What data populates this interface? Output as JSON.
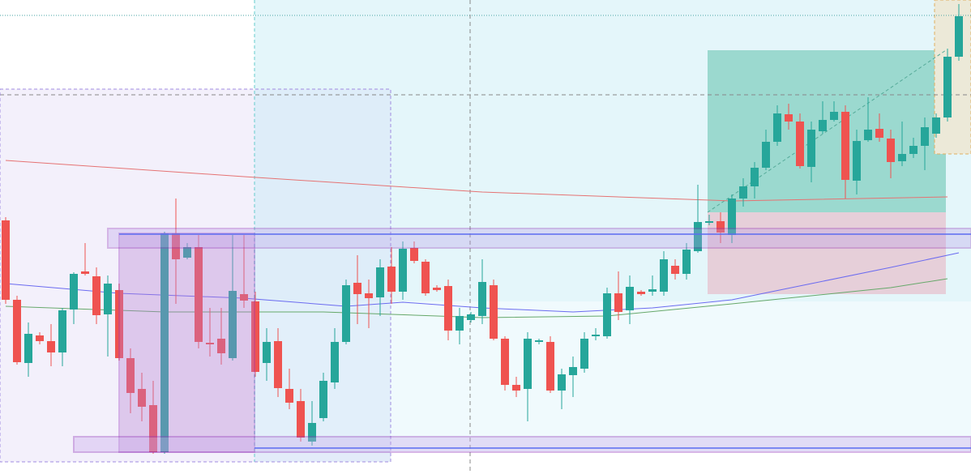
{
  "chart_data": {
    "type": "candlestick",
    "up_color": "#26a69a",
    "down_color": "#ef5350",
    "ylim": [
      0,
      585
    ],
    "ohlc": [
      [
        313,
        317,
        210,
        215
      ],
      [
        215,
        220,
        135,
        138
      ],
      [
        137,
        187,
        120,
        173
      ],
      [
        171,
        175,
        160,
        164
      ],
      [
        164,
        185,
        133,
        150
      ],
      [
        150,
        205,
        133,
        202
      ],
      [
        203,
        249,
        185,
        247
      ],
      [
        250,
        285,
        245,
        247
      ],
      [
        244,
        255,
        185,
        196
      ],
      [
        197,
        245,
        145,
        235
      ],
      [
        227,
        235,
        140,
        143
      ],
      [
        143,
        155,
        75,
        100
      ],
      [
        105,
        125,
        65,
        83
      ],
      [
        85,
        115,
        25,
        27
      ],
      [
        27,
        299,
        25,
        297
      ],
      [
        297,
        340,
        210,
        265
      ],
      [
        267,
        285,
        265,
        280
      ],
      [
        280,
        295,
        155,
        163
      ],
      [
        162,
        205,
        145,
        160
      ],
      [
        167,
        205,
        135,
        149
      ],
      [
        143,
        295,
        140,
        226
      ],
      [
        222,
        295,
        205,
        214
      ],
      [
        213,
        225,
        120,
        126
      ],
      [
        137,
        180,
        115,
        163
      ],
      [
        164,
        180,
        95,
        106
      ],
      [
        105,
        130,
        80,
        88
      ],
      [
        90,
        105,
        40,
        45
      ],
      [
        40,
        90,
        35,
        63
      ],
      [
        69,
        125,
        65,
        115
      ],
      [
        113,
        180,
        105,
        163
      ],
      [
        163,
        240,
        160,
        233
      ],
      [
        236,
        270,
        185,
        222
      ],
      [
        223,
        240,
        180,
        217
      ],
      [
        218,
        265,
        195,
        255
      ],
      [
        256,
        280,
        210,
        225
      ],
      [
        225,
        287,
        215,
        278
      ],
      [
        279,
        287,
        260,
        263
      ],
      [
        262,
        265,
        220,
        223
      ],
      [
        230,
        233,
        225,
        227
      ],
      [
        232,
        240,
        165,
        177
      ],
      [
        177,
        205,
        160,
        195
      ],
      [
        190,
        200,
        187,
        197
      ],
      [
        195,
        265,
        185,
        237
      ],
      [
        233,
        240,
        165,
        167
      ],
      [
        167,
        170,
        103,
        110
      ],
      [
        110,
        120,
        95,
        103
      ],
      [
        105,
        175,
        65,
        167
      ],
      [
        163,
        167,
        160,
        165
      ],
      [
        163,
        170,
        100,
        103
      ],
      [
        103,
        130,
        80,
        123
      ],
      [
        122,
        145,
        95,
        132
      ],
      [
        130,
        175,
        125,
        167
      ],
      [
        170,
        180,
        165,
        172
      ],
      [
        170,
        230,
        167,
        223
      ],
      [
        223,
        250,
        190,
        200
      ],
      [
        202,
        245,
        185,
        231
      ],
      [
        225,
        227,
        220,
        222
      ],
      [
        225,
        245,
        220,
        228
      ],
      [
        225,
        275,
        220,
        265
      ],
      [
        257,
        265,
        240,
        247
      ],
      [
        247,
        285,
        240,
        277
      ],
      [
        275,
        357,
        273,
        311
      ],
      [
        310,
        320,
        307,
        312
      ],
      [
        312,
        323,
        285,
        298
      ],
      [
        295,
        345,
        285,
        340
      ],
      [
        340,
        365,
        330,
        355
      ],
      [
        355,
        385,
        340,
        378
      ],
      [
        378,
        425,
        375,
        410
      ],
      [
        410,
        455,
        405,
        445
      ],
      [
        444,
        457,
        425,
        435
      ],
      [
        435,
        445,
        377,
        380
      ],
      [
        379,
        435,
        360,
        425
      ],
      [
        423,
        460,
        420,
        437
      ],
      [
        437,
        460,
        435,
        447
      ],
      [
        447,
        455,
        340,
        363
      ],
      [
        362,
        425,
        345,
        411
      ],
      [
        412,
        465,
        410,
        425
      ],
      [
        426,
        445,
        410,
        415
      ],
      [
        414,
        425,
        365,
        385
      ],
      [
        386,
        435,
        380,
        395
      ],
      [
        395,
        415,
        390,
        405
      ],
      [
        405,
        440,
        375,
        428
      ],
      [
        420,
        445,
        415,
        440
      ],
      [
        440,
        525,
        435,
        515
      ],
      [
        515,
        580,
        510,
        565
      ]
    ],
    "lines": [
      {
        "color": "#e57373",
        "x": [
          0,
          21,
          42,
          64,
          83
        ],
        "values": [
          387,
          367,
          348,
          337,
          342
        ]
      },
      {
        "color": "#6b6bf0",
        "x": [
          0,
          10,
          21,
          30,
          35,
          42,
          50,
          57,
          64,
          71,
          78,
          84
        ],
        "values": [
          235,
          223,
          217,
          207,
          212,
          205,
          200,
          205,
          215,
          235,
          255,
          273
        ]
      },
      {
        "color": "#66a86a",
        "x": [
          0,
          14,
          28,
          42,
          53,
          64,
          71,
          78,
          83
        ],
        "values": [
          207,
          200,
          200,
          193,
          195,
          210,
          220,
          230,
          241
        ]
      }
    ]
  }
}
